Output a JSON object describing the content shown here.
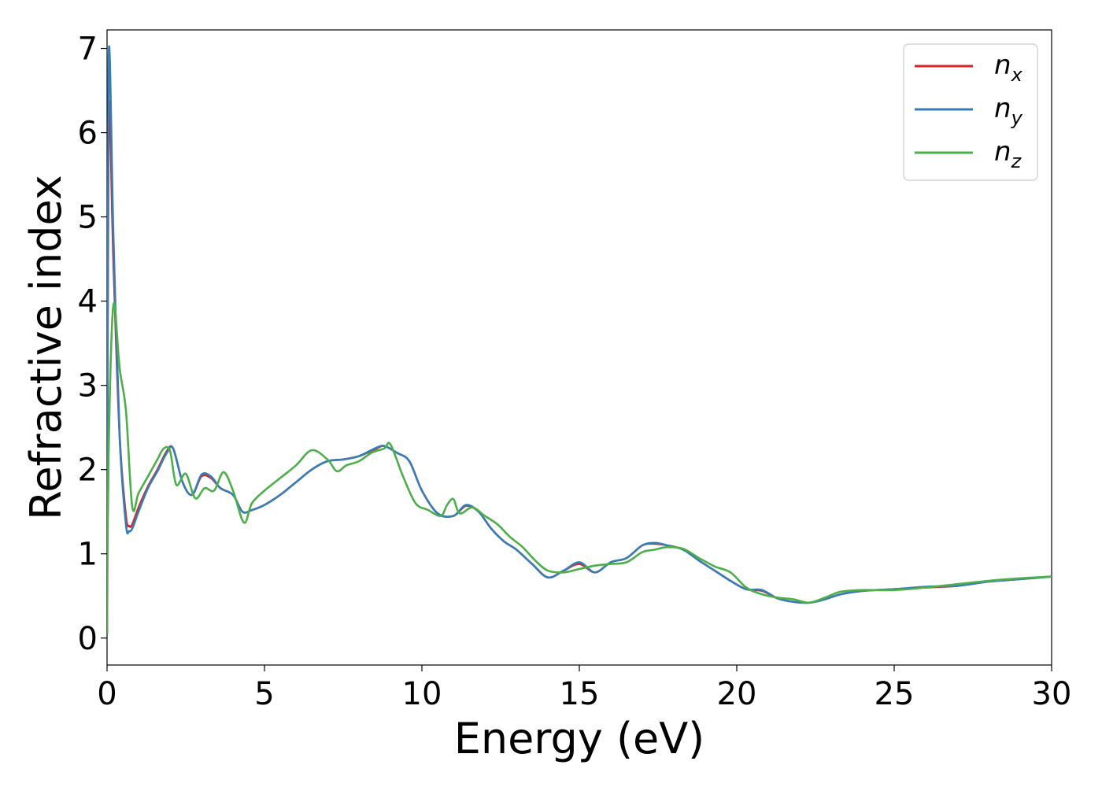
{
  "chart_data": {
    "type": "line",
    "xlabel": "Energy (eV)",
    "ylabel": "Refractive index",
    "xlim": [
      0,
      30
    ],
    "ylim": [
      -0.32,
      7.22
    ],
    "xticks": [
      0,
      5,
      10,
      15,
      20,
      25,
      30
    ],
    "yticks": [
      0,
      1,
      2,
      3,
      4,
      5,
      6,
      7
    ],
    "grid": false,
    "legend_position": "top-right",
    "series": [
      {
        "name": "n",
        "sub": "x",
        "color": "#d62728",
        "x": [
          0,
          0.05,
          0.2,
          0.4,
          0.6,
          0.7,
          0.8,
          1.0,
          1.3,
          1.6,
          1.9,
          2.1,
          2.4,
          2.7,
          3.0,
          3.3,
          3.6,
          4.0,
          4.3,
          4.6,
          5.0,
          5.5,
          6.0,
          6.5,
          7.0,
          7.5,
          8.0,
          8.5,
          8.8,
          9.2,
          9.6,
          10.0,
          10.5,
          11.0,
          11.4,
          11.8,
          12.2,
          12.6,
          13.0,
          13.5,
          14.0,
          14.5,
          15.0,
          15.5,
          16.0,
          16.5,
          17.0,
          17.4,
          17.8,
          18.3,
          18.8,
          19.3,
          19.8,
          20.3,
          20.8,
          21.3,
          21.8,
          22.3,
          22.8,
          23.3,
          24.0,
          25.0,
          26.0,
          27.0,
          28.0,
          29.0,
          30.0
        ],
        "y": [
          0.05,
          6.2,
          4.5,
          2.4,
          1.45,
          1.33,
          1.35,
          1.55,
          1.8,
          2.0,
          2.22,
          2.25,
          1.85,
          1.7,
          1.92,
          1.9,
          1.78,
          1.7,
          1.5,
          1.52,
          1.58,
          1.7,
          1.85,
          2.0,
          2.1,
          2.12,
          2.16,
          2.24,
          2.28,
          2.2,
          2.1,
          1.75,
          1.48,
          1.45,
          1.57,
          1.5,
          1.3,
          1.15,
          1.05,
          0.88,
          0.72,
          0.8,
          0.88,
          0.78,
          0.9,
          0.95,
          1.1,
          1.12,
          1.1,
          1.05,
          0.92,
          0.8,
          0.68,
          0.58,
          0.56,
          0.47,
          0.43,
          0.42,
          0.46,
          0.52,
          0.56,
          0.58,
          0.6,
          0.62,
          0.67,
          0.7,
          0.73
        ]
      },
      {
        "name": "n",
        "sub": "y",
        "color": "#377eb8",
        "x": [
          0,
          0.05,
          0.2,
          0.4,
          0.6,
          0.7,
          0.8,
          1.0,
          1.3,
          1.6,
          1.9,
          2.1,
          2.4,
          2.7,
          3.0,
          3.3,
          3.6,
          4.0,
          4.3,
          4.6,
          5.0,
          5.5,
          6.0,
          6.5,
          7.0,
          7.5,
          8.0,
          8.5,
          8.8,
          9.2,
          9.6,
          10.0,
          10.5,
          11.0,
          11.4,
          11.8,
          12.2,
          12.6,
          13.0,
          13.5,
          14.0,
          14.5,
          15.0,
          15.5,
          16.0,
          16.5,
          17.0,
          17.4,
          17.8,
          18.3,
          18.8,
          19.3,
          19.8,
          20.3,
          20.8,
          21.3,
          21.8,
          22.3,
          22.8,
          23.3,
          24.0,
          25.0,
          26.0,
          27.0,
          28.0,
          29.0,
          30.0
        ],
        "y": [
          0.05,
          6.85,
          4.8,
          2.4,
          1.35,
          1.27,
          1.3,
          1.5,
          1.78,
          1.98,
          2.2,
          2.25,
          1.85,
          1.7,
          1.94,
          1.92,
          1.78,
          1.7,
          1.5,
          1.52,
          1.58,
          1.7,
          1.85,
          2.0,
          2.1,
          2.12,
          2.16,
          2.25,
          2.28,
          2.2,
          2.1,
          1.75,
          1.48,
          1.45,
          1.58,
          1.5,
          1.3,
          1.15,
          1.05,
          0.88,
          0.72,
          0.8,
          0.9,
          0.78,
          0.9,
          0.95,
          1.1,
          1.13,
          1.1,
          1.05,
          0.92,
          0.8,
          0.68,
          0.58,
          0.57,
          0.47,
          0.43,
          0.42,
          0.46,
          0.52,
          0.56,
          0.58,
          0.61,
          0.62,
          0.67,
          0.7,
          0.73
        ]
      },
      {
        "name": "n",
        "sub": "z",
        "color": "#4daf4a",
        "x": [
          0,
          0.05,
          0.2,
          0.4,
          0.6,
          0.8,
          1.0,
          1.3,
          1.6,
          1.8,
          2.0,
          2.2,
          2.5,
          2.8,
          3.1,
          3.4,
          3.7,
          4.0,
          4.35,
          4.6,
          5.0,
          5.5,
          6.0,
          6.5,
          7.0,
          7.3,
          7.6,
          8.0,
          8.4,
          8.8,
          9.0,
          9.4,
          9.8,
          10.2,
          10.6,
          10.8,
          11.0,
          11.2,
          11.6,
          12.0,
          12.4,
          12.8,
          13.2,
          13.6,
          14.0,
          14.5,
          15.0,
          15.5,
          16.0,
          16.5,
          17.0,
          17.4,
          17.8,
          18.3,
          18.8,
          19.3,
          19.8,
          20.3,
          20.8,
          21.3,
          21.8,
          22.3,
          22.8,
          23.3,
          24.0,
          25.0,
          26.0,
          27.0,
          28.0,
          29.0,
          30.0
        ],
        "y": [
          0.05,
          2.2,
          3.95,
          3.2,
          2.7,
          1.56,
          1.72,
          1.92,
          2.12,
          2.25,
          2.22,
          1.82,
          1.95,
          1.66,
          1.78,
          1.75,
          1.97,
          1.75,
          1.37,
          1.6,
          1.75,
          1.9,
          2.05,
          2.23,
          2.12,
          1.98,
          2.05,
          2.1,
          2.2,
          2.25,
          2.3,
          1.92,
          1.6,
          1.52,
          1.45,
          1.58,
          1.65,
          1.48,
          1.55,
          1.45,
          1.35,
          1.2,
          1.08,
          0.92,
          0.8,
          0.78,
          0.82,
          0.86,
          0.88,
          0.9,
          1.02,
          1.05,
          1.08,
          1.06,
          0.95,
          0.85,
          0.78,
          0.6,
          0.52,
          0.48,
          0.46,
          0.42,
          0.48,
          0.55,
          0.57,
          0.57,
          0.6,
          0.64,
          0.68,
          0.71,
          0.73
        ]
      }
    ]
  }
}
